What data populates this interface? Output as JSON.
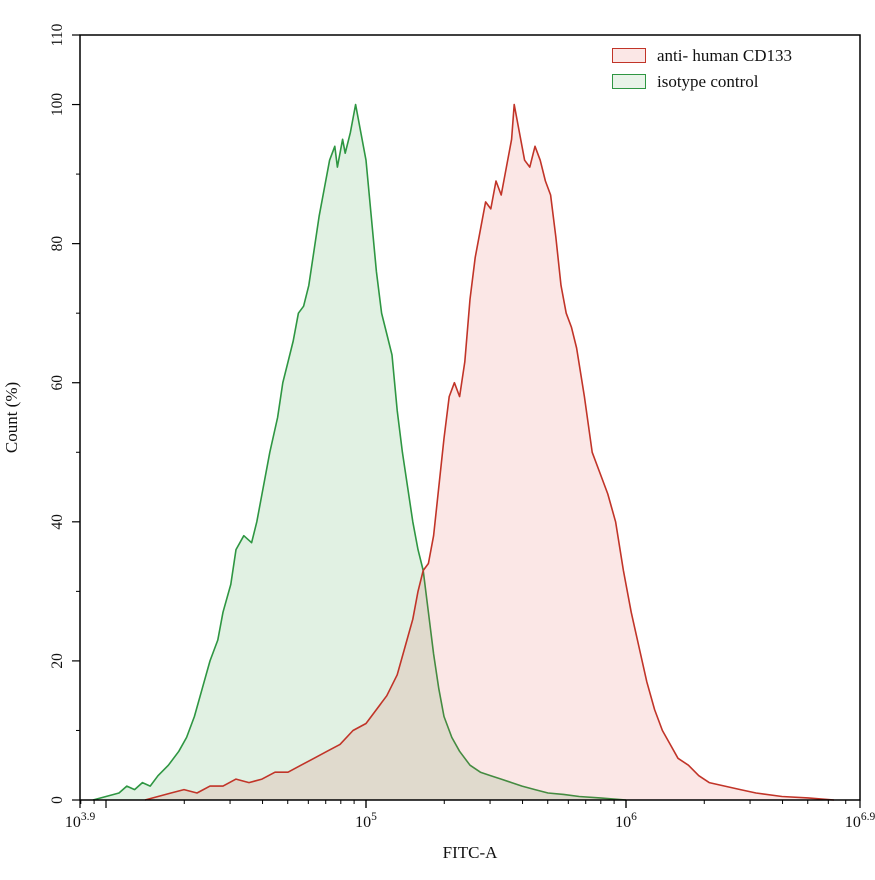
{
  "figure": {
    "xlabel": "FITC-A",
    "ylabel": "Count (%)"
  },
  "legend": {
    "items": [
      {
        "label": "anti- human CD133"
      },
      {
        "label": "isotype control"
      }
    ]
  },
  "chart_data": {
    "type": "area",
    "subtype": "flow-cytometry-histogram",
    "title": "",
    "xlabel": "FITC-A",
    "ylabel": "Count (%)",
    "x_scale": "log10",
    "x_range_log": [
      3.9,
      6.9
    ],
    "y_range": [
      0,
      110
    ],
    "grid": false,
    "legend_position": "top-right-inside",
    "x_ticks": [
      {
        "log": 3.9,
        "label_base": "10",
        "label_exp": "3.9"
      },
      {
        "log": 5.0,
        "label_base": "10",
        "label_exp": "5"
      },
      {
        "log": 6.0,
        "label_base": "10",
        "label_exp": "6"
      },
      {
        "log": 6.9,
        "label_base": "10",
        "label_exp": "6.9"
      }
    ],
    "x_decade_ticks": [
      4.0,
      5.0,
      6.0
    ],
    "y_ticks": [
      0,
      20,
      40,
      60,
      80,
      100,
      110
    ],
    "y_minor_ticks": [
      10,
      30,
      50,
      70,
      90
    ],
    "series": [
      {
        "name": "anti- human CD133",
        "stroke": "#c13428",
        "fill": "rgba(225,70,60,0.13)",
        "swatch": "#fbe7e6",
        "points": [
          [
            4.15,
            0
          ],
          [
            4.2,
            0.5
          ],
          [
            4.25,
            1
          ],
          [
            4.3,
            1.5
          ],
          [
            4.35,
            1
          ],
          [
            4.4,
            2
          ],
          [
            4.45,
            2
          ],
          [
            4.5,
            3
          ],
          [
            4.55,
            2.5
          ],
          [
            4.6,
            3
          ],
          [
            4.65,
            4
          ],
          [
            4.7,
            4
          ],
          [
            4.75,
            5
          ],
          [
            4.8,
            6
          ],
          [
            4.85,
            7
          ],
          [
            4.9,
            8
          ],
          [
            4.95,
            10
          ],
          [
            5.0,
            11
          ],
          [
            5.04,
            13
          ],
          [
            5.08,
            15
          ],
          [
            5.12,
            18
          ],
          [
            5.15,
            22
          ],
          [
            5.18,
            26
          ],
          [
            5.2,
            30
          ],
          [
            5.22,
            33
          ],
          [
            5.24,
            34
          ],
          [
            5.26,
            38
          ],
          [
            5.28,
            45
          ],
          [
            5.3,
            52
          ],
          [
            5.32,
            58
          ],
          [
            5.34,
            60
          ],
          [
            5.36,
            58
          ],
          [
            5.38,
            63
          ],
          [
            5.4,
            72
          ],
          [
            5.42,
            78
          ],
          [
            5.44,
            82
          ],
          [
            5.46,
            86
          ],
          [
            5.48,
            85
          ],
          [
            5.5,
            89
          ],
          [
            5.52,
            87
          ],
          [
            5.54,
            91
          ],
          [
            5.56,
            95
          ],
          [
            5.57,
            100
          ],
          [
            5.59,
            96
          ],
          [
            5.61,
            92
          ],
          [
            5.63,
            91
          ],
          [
            5.65,
            94
          ],
          [
            5.67,
            92
          ],
          [
            5.69,
            89
          ],
          [
            5.71,
            87
          ],
          [
            5.73,
            81
          ],
          [
            5.75,
            74
          ],
          [
            5.77,
            70
          ],
          [
            5.79,
            68
          ],
          [
            5.81,
            65
          ],
          [
            5.84,
            58
          ],
          [
            5.87,
            50
          ],
          [
            5.9,
            47
          ],
          [
            5.93,
            44
          ],
          [
            5.96,
            40
          ],
          [
            5.99,
            33
          ],
          [
            6.02,
            27
          ],
          [
            6.05,
            22
          ],
          [
            6.08,
            17
          ],
          [
            6.11,
            13
          ],
          [
            6.14,
            10
          ],
          [
            6.17,
            8
          ],
          [
            6.2,
            6
          ],
          [
            6.24,
            5
          ],
          [
            6.28,
            3.5
          ],
          [
            6.32,
            2.5
          ],
          [
            6.38,
            2
          ],
          [
            6.44,
            1.5
          ],
          [
            6.5,
            1
          ],
          [
            6.6,
            0.5
          ],
          [
            6.7,
            0.3
          ],
          [
            6.8,
            0
          ]
        ]
      },
      {
        "name": "isotype control",
        "stroke": "#2e9642",
        "fill": "rgba(55,160,70,0.15)",
        "swatch": "#e8f3e8",
        "points": [
          [
            3.95,
            0
          ],
          [
            4.0,
            0.5
          ],
          [
            4.05,
            1
          ],
          [
            4.08,
            2
          ],
          [
            4.11,
            1.5
          ],
          [
            4.14,
            2.5
          ],
          [
            4.17,
            2
          ],
          [
            4.2,
            3.5
          ],
          [
            4.24,
            5
          ],
          [
            4.28,
            7
          ],
          [
            4.31,
            9
          ],
          [
            4.34,
            12
          ],
          [
            4.37,
            16
          ],
          [
            4.4,
            20
          ],
          [
            4.43,
            23
          ],
          [
            4.45,
            27
          ],
          [
            4.48,
            31
          ],
          [
            4.5,
            36
          ],
          [
            4.53,
            38
          ],
          [
            4.56,
            37
          ],
          [
            4.58,
            40
          ],
          [
            4.6,
            44
          ],
          [
            4.63,
            50
          ],
          [
            4.66,
            55
          ],
          [
            4.68,
            60
          ],
          [
            4.7,
            63
          ],
          [
            4.72,
            66
          ],
          [
            4.74,
            70
          ],
          [
            4.76,
            71
          ],
          [
            4.78,
            74
          ],
          [
            4.8,
            79
          ],
          [
            4.82,
            84
          ],
          [
            4.84,
            88
          ],
          [
            4.86,
            92
          ],
          [
            4.88,
            94
          ],
          [
            4.89,
            91
          ],
          [
            4.91,
            95
          ],
          [
            4.92,
            93
          ],
          [
            4.94,
            96
          ],
          [
            4.96,
            100
          ],
          [
            4.98,
            96
          ],
          [
            5.0,
            92
          ],
          [
            5.02,
            84
          ],
          [
            5.04,
            76
          ],
          [
            5.06,
            70
          ],
          [
            5.08,
            67
          ],
          [
            5.1,
            64
          ],
          [
            5.12,
            56
          ],
          [
            5.14,
            50
          ],
          [
            5.16,
            45
          ],
          [
            5.18,
            40
          ],
          [
            5.2,
            36
          ],
          [
            5.22,
            33
          ],
          [
            5.24,
            27
          ],
          [
            5.26,
            21
          ],
          [
            5.28,
            16
          ],
          [
            5.3,
            12
          ],
          [
            5.33,
            9
          ],
          [
            5.36,
            7
          ],
          [
            5.4,
            5
          ],
          [
            5.44,
            4
          ],
          [
            5.48,
            3.5
          ],
          [
            5.52,
            3
          ],
          [
            5.56,
            2.5
          ],
          [
            5.6,
            2
          ],
          [
            5.65,
            1.5
          ],
          [
            5.7,
            1
          ],
          [
            5.76,
            0.8
          ],
          [
            5.82,
            0.5
          ],
          [
            5.9,
            0.3
          ],
          [
            6.0,
            0
          ]
        ]
      }
    ]
  }
}
